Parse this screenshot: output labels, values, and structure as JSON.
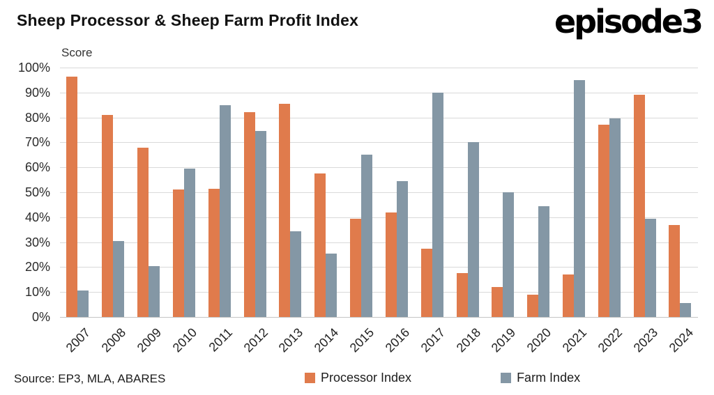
{
  "header": {
    "title": "Sheep Processor & Sheep Farm Profit Index",
    "logo_text": "episode3"
  },
  "chart_data": {
    "type": "bar",
    "title": "Sheep Processor & Sheep Farm Profit Index",
    "ylabel": "Score",
    "ylim": [
      0,
      100
    ],
    "grid": true,
    "legend_position": "bottom",
    "y_ticks": [
      "0%",
      "10%",
      "20%",
      "30%",
      "40%",
      "50%",
      "60%",
      "70%",
      "80%",
      "90%",
      "100%"
    ],
    "categories": [
      "2007",
      "2008",
      "2009",
      "2010",
      "2011",
      "2012",
      "2013",
      "2014",
      "2015",
      "2016",
      "2017",
      "2018",
      "2019",
      "2020",
      "2021",
      "2022",
      "2023",
      "2024"
    ],
    "series": [
      {
        "name": "Processor Index",
        "color": "#E07B4C",
        "values": [
          96.5,
          81,
          68,
          51,
          51.5,
          82,
          85.5,
          57.5,
          39.5,
          42,
          27.5,
          17.5,
          12,
          9,
          17,
          77,
          89,
          37
        ]
      },
      {
        "name": "Farm Index",
        "color": "#8497A5",
        "values": [
          10.5,
          30.5,
          20.5,
          59.5,
          85,
          74.5,
          34.5,
          25.5,
          65,
          54.5,
          90,
          70,
          50,
          44.5,
          95,
          79.5,
          39.5,
          5.5
        ]
      }
    ]
  },
  "footer": {
    "source": "Source: EP3, MLA, ABARES"
  }
}
